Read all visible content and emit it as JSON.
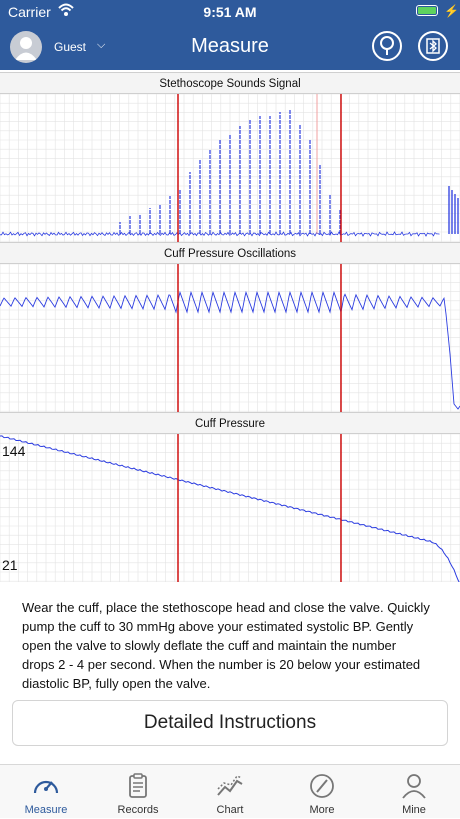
{
  "status_bar": {
    "carrier": "Carrier",
    "time": "9:51 AM"
  },
  "nav": {
    "user": "Guest",
    "title": "Measure",
    "icons": [
      "profile-avatar-icon",
      "chevron-down-icon",
      "stethoscope-icon",
      "bluetooth-icon"
    ]
  },
  "panels": [
    {
      "title": "Stethoscope Sounds Signal"
    },
    {
      "title": "Cuff Pressure Oscillations"
    },
    {
      "title": "Cuff Pressure",
      "y_labels": [
        "144",
        "21"
      ]
    }
  ],
  "colors": {
    "header": "#2e5a9c",
    "trace": "#2b3ce0",
    "marker": "#d01010",
    "grid": "#e3e3e3"
  },
  "instructions": "Wear the cuff, place the stethoscope head and close the valve. Quickly pump the cuff to 30 mmHg above your estimated systolic BP. Gently open the valve to slowly deflate the cuff and maintain the number drops 2 - 4 per second. When the number is 20 below your estimated diastolic BP, fully open the valve.",
  "detail_button": "Detailed Instructions",
  "tabs": [
    {
      "label": "Measure",
      "icon": "speedometer-icon",
      "active": true
    },
    {
      "label": "Records",
      "icon": "clipboard-icon",
      "active": false
    },
    {
      "label": "Chart",
      "icon": "line-chart-icon",
      "active": false
    },
    {
      "label": "More",
      "icon": "compass-icon",
      "active": false
    },
    {
      "label": "Mine",
      "icon": "person-icon",
      "active": false
    }
  ]
}
